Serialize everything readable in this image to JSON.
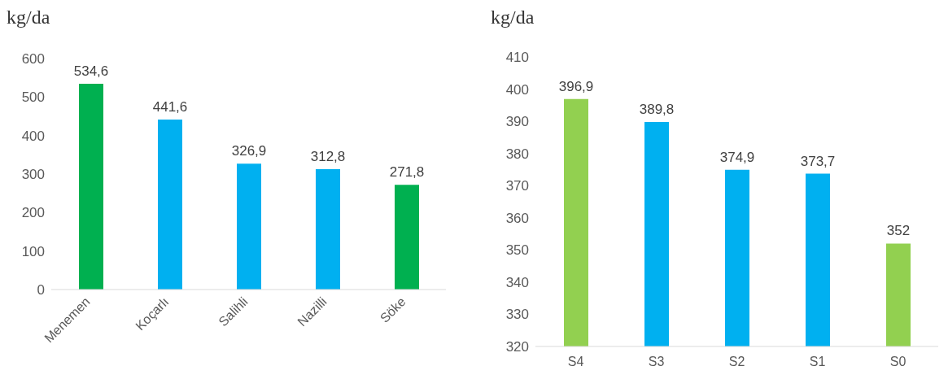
{
  "chart_data": [
    {
      "type": "bar",
      "ylabel": "kg/da",
      "categories": [
        "Menemen",
        "Koçarlı",
        "Salihli",
        "Nazilli",
        "Söke"
      ],
      "values": [
        534.6,
        441.6,
        326.9,
        312.8,
        271.8
      ],
      "colors": [
        "#00b050",
        "#00b0f0",
        "#00b0f0",
        "#00b0f0",
        "#00b050"
      ],
      "value_labels": [
        "534,6",
        "441,6",
        "326,9",
        "312,8",
        "271,8"
      ],
      "ylim": [
        0,
        600
      ],
      "yticks": [
        0,
        100,
        200,
        300,
        400,
        500,
        600
      ]
    },
    {
      "type": "bar",
      "ylabel": "kg/da",
      "categories": [
        "S4",
        "S3",
        "S2",
        "S1",
        "S0"
      ],
      "values": [
        396.9,
        389.8,
        374.9,
        373.7,
        352
      ],
      "colors": [
        "#92d050",
        "#00b0f0",
        "#00b0f0",
        "#00b0f0",
        "#92d050"
      ],
      "value_labels": [
        "396,9",
        "389,8",
        "374,9",
        "373,7",
        "352"
      ],
      "ylim": [
        320,
        410
      ],
      "yticks": [
        320,
        330,
        340,
        350,
        360,
        370,
        380,
        390,
        400,
        410
      ]
    }
  ]
}
